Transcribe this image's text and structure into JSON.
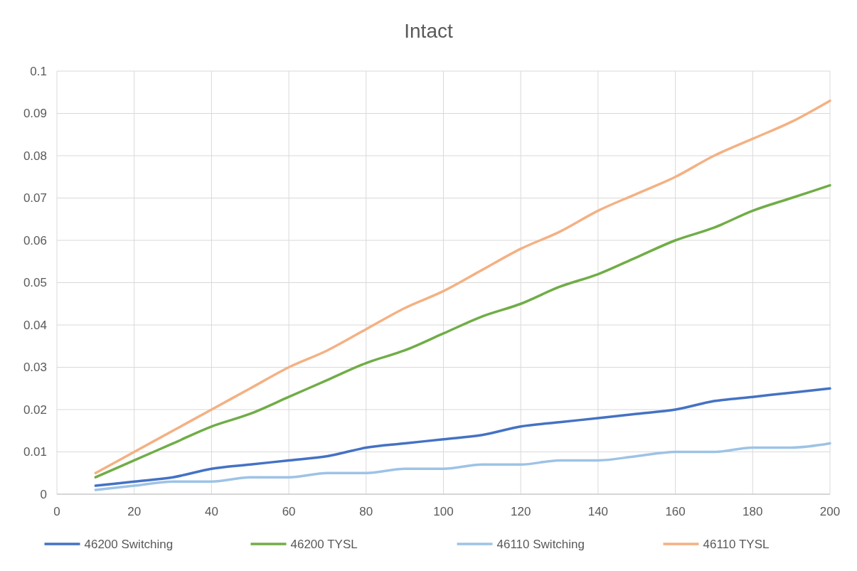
{
  "chart_data": {
    "type": "line",
    "title": "Intact",
    "x": [
      10,
      20,
      30,
      40,
      50,
      60,
      70,
      80,
      90,
      100,
      110,
      120,
      130,
      140,
      150,
      160,
      170,
      180,
      190,
      200
    ],
    "xlim": [
      0,
      200
    ],
    "xticks": [
      0,
      20,
      40,
      60,
      80,
      100,
      120,
      140,
      160,
      180,
      200
    ],
    "ylim": [
      0,
      0.1
    ],
    "yticks": [
      0,
      0.01,
      0.02,
      0.03,
      0.04,
      0.05,
      0.06,
      0.07,
      0.08,
      0.09,
      0.1
    ],
    "grid": true,
    "legend": "bottom",
    "marker": "none",
    "line_style": "solid",
    "series": [
      {
        "name": "46200 Switching",
        "color": "#4472c4",
        "values": [
          0.002,
          0.003,
          0.004,
          0.006,
          0.007,
          0.008,
          0.009,
          0.011,
          0.012,
          0.013,
          0.014,
          0.016,
          0.017,
          0.018,
          0.019,
          0.02,
          0.022,
          0.023,
          0.024,
          0.025
        ]
      },
      {
        "name": "46200 TYSL",
        "color": "#70ad47",
        "values": [
          0.004,
          0.008,
          0.012,
          0.016,
          0.019,
          0.023,
          0.027,
          0.031,
          0.034,
          0.038,
          0.042,
          0.045,
          0.049,
          0.052,
          0.056,
          0.06,
          0.063,
          0.067,
          0.07,
          0.073
        ]
      },
      {
        "name": "46110 Switching",
        "color": "#9dc3e6",
        "values": [
          0.001,
          0.002,
          0.003,
          0.003,
          0.004,
          0.004,
          0.005,
          0.005,
          0.006,
          0.006,
          0.007,
          0.007,
          0.008,
          0.008,
          0.009,
          0.01,
          0.01,
          0.011,
          0.011,
          0.012
        ]
      },
      {
        "name": "46110 TYSL",
        "color": "#f4b183",
        "values": [
          0.005,
          0.01,
          0.015,
          0.02,
          0.025,
          0.03,
          0.034,
          0.039,
          0.044,
          0.048,
          0.053,
          0.058,
          0.062,
          0.067,
          0.071,
          0.075,
          0.08,
          0.084,
          0.088,
          0.093
        ]
      }
    ]
  }
}
